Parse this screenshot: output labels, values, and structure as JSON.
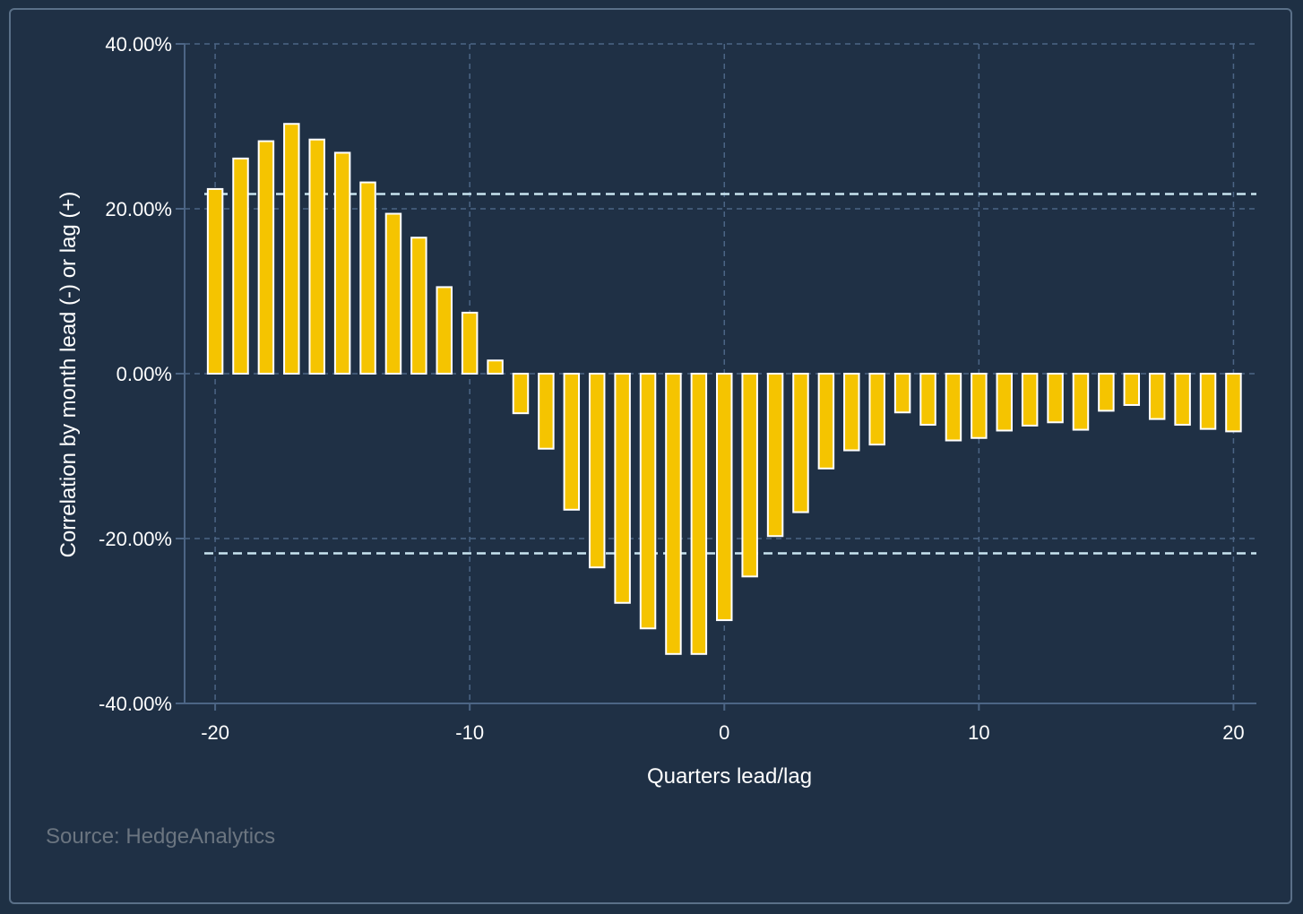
{
  "source_text": "Source: HedgeAnalytics",
  "colors": {
    "background": "#1f3045",
    "bar_fill": "#f5c400",
    "bar_stroke": "#ffffff",
    "grid": "#4c6585",
    "threshold": "#c8e4f0"
  },
  "chart_data": {
    "type": "bar",
    "title": "",
    "xlabel": "Quarters lead/lag",
    "ylabel": "Correlation by month lead (-) or lag (+)",
    "x": [
      -20,
      -19,
      -18,
      -17,
      -16,
      -15,
      -14,
      -13,
      -12,
      -11,
      -10,
      -9,
      -8,
      -7,
      -6,
      -5,
      -4,
      -3,
      -2,
      -1,
      0,
      1,
      2,
      3,
      4,
      5,
      6,
      7,
      8,
      9,
      10,
      11,
      12,
      13,
      14,
      15,
      16,
      17,
      18,
      19,
      20
    ],
    "values": [
      22.4,
      26.1,
      28.2,
      30.3,
      28.4,
      26.8,
      23.2,
      19.4,
      16.5,
      10.5,
      7.4,
      1.6,
      -4.8,
      -9.1,
      -16.5,
      -23.5,
      -27.8,
      -30.9,
      -34.0,
      -34.0,
      -29.9,
      -24.6,
      -19.7,
      -16.8,
      -11.5,
      -9.3,
      -8.6,
      -4.7,
      -6.2,
      -8.1,
      -7.8,
      -6.9,
      -6.3,
      -5.9,
      -6.8,
      -4.5,
      -3.8,
      -5.5,
      -6.2,
      -6.7,
      -7.0
    ],
    "xlim": [
      -21.2,
      20.9
    ],
    "ylim": [
      -40,
      40
    ],
    "x_ticks": [
      -20,
      -10,
      0,
      10,
      20
    ],
    "x_tick_labels": [
      "-20",
      "-10",
      "0",
      "10",
      "20"
    ],
    "y_ticks": [
      40,
      20,
      0,
      -20,
      -40
    ],
    "y_tick_labels": [
      "40.00%",
      "20.00%",
      "0.00%",
      "-20.00%",
      "-40.00%"
    ],
    "thresholds": [
      21.8,
      -21.8
    ],
    "grid": true,
    "legend": "none"
  }
}
